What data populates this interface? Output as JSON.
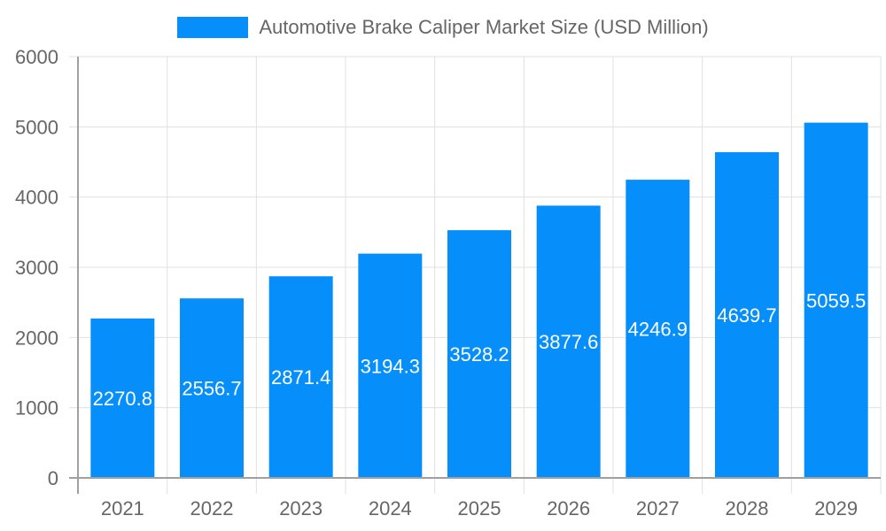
{
  "legend": {
    "label": "Automotive Brake Caliper Market Size (USD Million)",
    "color": "#068ffb"
  },
  "colors": {
    "bar": "#068ffb",
    "grid": "#e0e0e0",
    "axis": "#a0a0a0",
    "tick_text": "#666666",
    "bar_label_text": "#ffffff"
  },
  "chart_data": {
    "type": "bar",
    "title": "",
    "xlabel": "",
    "ylabel": "",
    "categories": [
      "2021",
      "2022",
      "2023",
      "2024",
      "2025",
      "2026",
      "2027",
      "2028",
      "2029"
    ],
    "series": [
      {
        "name": "Automotive Brake Caliper Market Size (USD Million)",
        "values": [
          2270.8,
          2556.7,
          2871.4,
          3194.3,
          3528.2,
          3877.6,
          4246.9,
          4639.7,
          5059.5
        ]
      }
    ],
    "ylim": [
      0,
      6000
    ],
    "yticks": [
      0,
      1000,
      2000,
      3000,
      4000,
      5000,
      6000
    ],
    "grid": true,
    "legend_position": "top",
    "data_labels": true
  }
}
